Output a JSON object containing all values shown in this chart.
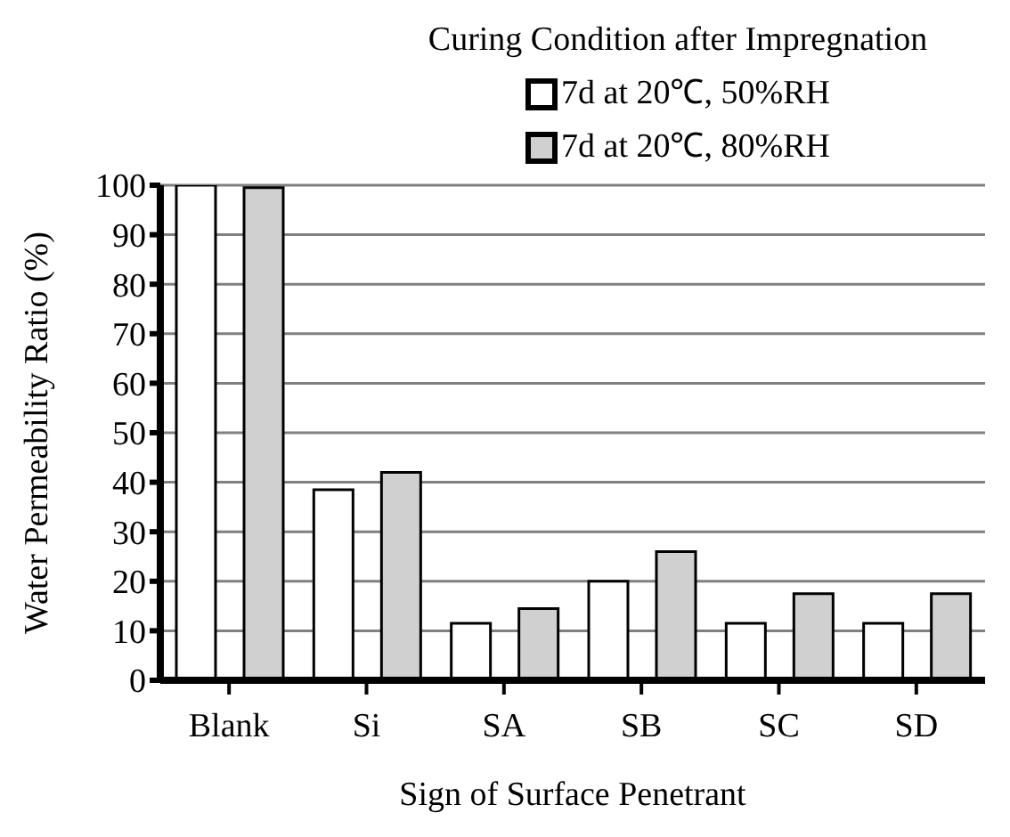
{
  "chart_data": {
    "type": "bar",
    "xlabel": "Sign of Surface Penetrant",
    "ylabel": "Water Permeability  Ratio (%)",
    "legend_title": "Curing Condition after Impregnation",
    "categories": [
      "Blank",
      "Si",
      "SA",
      "SB",
      "SC",
      "SD"
    ],
    "series": [
      {
        "name": "7d at 20℃, 50%RH",
        "color": "#ffffff",
        "values": [
          100,
          38.5,
          11.5,
          20,
          11.5,
          11.5
        ]
      },
      {
        "name": "7d at 20℃, 80%RH",
        "color": "#d0d0d0",
        "values": [
          99.5,
          42,
          14.5,
          26,
          17.5,
          17.5
        ]
      }
    ],
    "ylim": [
      0,
      100
    ],
    "yticks": [
      0,
      10,
      20,
      30,
      40,
      50,
      60,
      70,
      80,
      90,
      100
    ],
    "grid": "y",
    "legend": "top right"
  }
}
